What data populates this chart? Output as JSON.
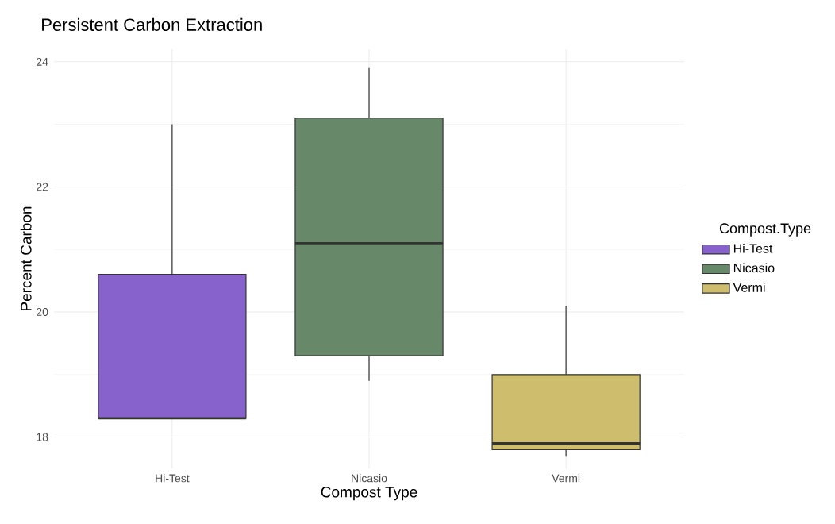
{
  "chart_data": {
    "type": "box",
    "title": "Persistent Carbon Extraction",
    "xlabel": "Compost Type",
    "ylabel": "Percent Carbon",
    "legend_title": "Compost.Type",
    "categories": [
      "Hi-Test",
      "Nicasio",
      "Vermi"
    ],
    "series": [
      {
        "name": "Hi-Test",
        "color": "#8862cc",
        "boxes": [
          {
            "low": 18.3,
            "q1": 18.3,
            "median": 18.3,
            "q3": 20.6,
            "high": 23.0
          },
          null,
          null
        ]
      },
      {
        "name": "Nicasio",
        "color": "#67896a",
        "boxes": [
          null,
          {
            "low": 18.9,
            "q1": 19.3,
            "median": 21.1,
            "q3": 23.1,
            "high": 23.9
          },
          null
        ]
      },
      {
        "name": "Vermi",
        "color": "#cdbd6c",
        "boxes": [
          null,
          null,
          {
            "low": 17.7,
            "q1": 17.8,
            "median": 17.9,
            "q3": 19.0,
            "high": 20.1
          }
        ]
      }
    ],
    "ylim": [
      17.5,
      24.2
    ],
    "yticks": [
      18,
      20,
      22,
      24
    ],
    "grid": true,
    "legend": "right"
  }
}
